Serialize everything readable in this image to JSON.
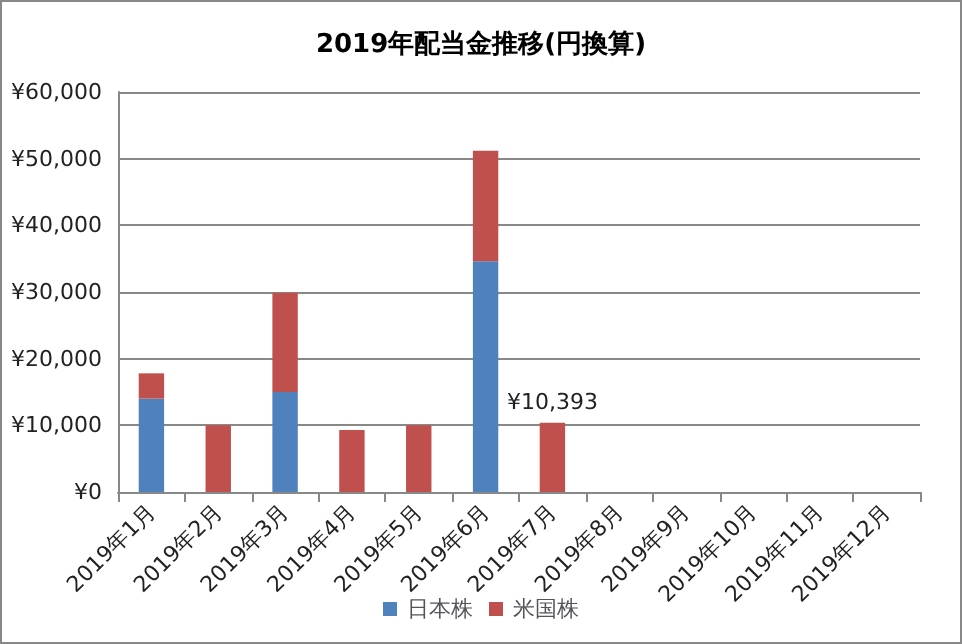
{
  "chart_data": {
    "type": "bar",
    "title": "2019年配当金推移(円換算)",
    "stacked": true,
    "categories": [
      "2019年1月",
      "2019年2月",
      "2019年3月",
      "2019年4月",
      "2019年5月",
      "2019年6月",
      "2019年7月",
      "2019年8月",
      "2019年9月",
      "2019年10月",
      "2019年11月",
      "2019年12月"
    ],
    "series": [
      {
        "name": "日本株",
        "color": "#4f81bd",
        "values": [
          14000,
          null,
          15000,
          null,
          null,
          34600,
          null,
          null,
          null,
          null,
          null,
          null
        ]
      },
      {
        "name": "米国株",
        "color": "#c0504d",
        "values": [
          3800,
          10000,
          14900,
          9300,
          10000,
          16600,
          10393,
          null,
          null,
          null,
          null,
          null
        ],
        "value_labels": [
          null,
          null,
          null,
          null,
          null,
          null,
          "¥10,393",
          null,
          null,
          null,
          null,
          null
        ]
      }
    ],
    "ylim": [
      0,
      60000
    ],
    "yticks": [
      {
        "value": 0,
        "label": "¥0"
      },
      {
        "value": 10000,
        "label": "¥10,000"
      },
      {
        "value": 20000,
        "label": "¥20,000"
      },
      {
        "value": 30000,
        "label": "¥30,000"
      },
      {
        "value": 40000,
        "label": "¥40,000"
      },
      {
        "value": 50000,
        "label": "¥50,000"
      },
      {
        "value": 60000,
        "label": "¥60,000"
      }
    ],
    "grid": "y",
    "legend": "bottom"
  }
}
